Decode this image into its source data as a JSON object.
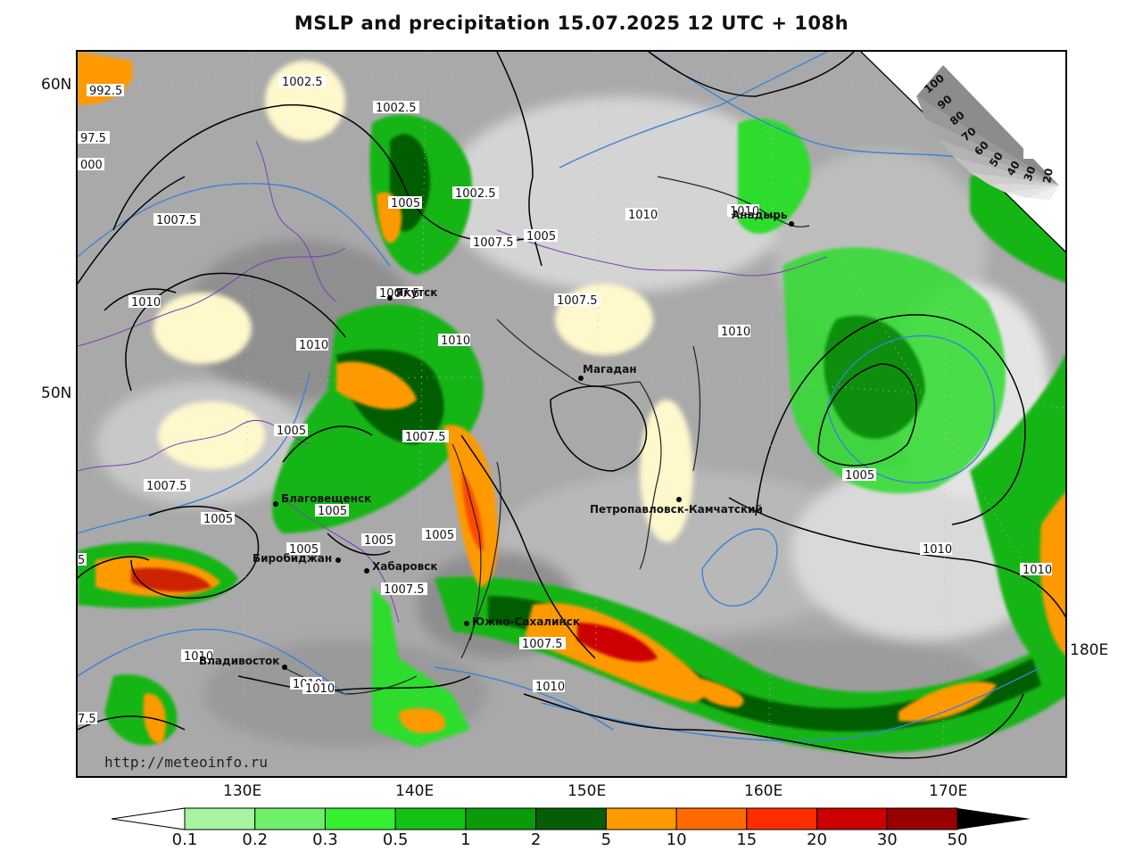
{
  "title": "MSLP and precipitation 15.07.2025 12 UTC + 108h",
  "source": "http://meteoinfo.ru",
  "lat_labels": [
    "60N",
    "50N"
  ],
  "lon_labels": [
    "130E",
    "140E",
    "150E",
    "160E",
    "170E",
    "180E"
  ],
  "cloud_scale": {
    "labels": [
      "100",
      "90",
      "80",
      "70",
      "60",
      "50",
      "40",
      "30",
      "20"
    ]
  },
  "precip_legend": {
    "unit_note": "",
    "labels": [
      "0.1",
      "0.2",
      "0.3",
      "0.5",
      "1",
      "2",
      "5",
      "10",
      "15",
      "20",
      "30",
      "50"
    ],
    "colors": [
      "#a6f3a0",
      "#6fef6a",
      "#34f02f",
      "#13c313",
      "#0a9a0a",
      "#065d06",
      "#ff9900",
      "#ff6a00",
      "#ff2c00",
      "#cc0000",
      "#990000"
    ]
  },
  "isobar_labels": [
    "992.5",
    "97.5",
    "000",
    "1002.5",
    "1002.5",
    "1002.5",
    "1005",
    "1007.5",
    "1005",
    "1010",
    "1010",
    "1007.5",
    "1007.5",
    "1010",
    "1007.5",
    "1010",
    "1005",
    "1007.5",
    "1007.5",
    "1005",
    "1010",
    "1005",
    "1005",
    "1005",
    "1005",
    "1007.5",
    "1010",
    "1010",
    "1010",
    "1007.5",
    "1010",
    "5",
    "7.5",
    "1010",
    "1010",
    "1005",
    "1010"
  ],
  "cities": [
    "Якутск",
    "Магадан",
    "Анадырь",
    "Петропавловск-Камчатский",
    "Благовещенск",
    "Биробиджан",
    "Хабаровск",
    "Южно-Сахалинск",
    "Владивосток"
  ],
  "colors": {
    "isobar": "#000000",
    "thickness": "#3b82d6",
    "border": "#7a3db8",
    "coast": "#222222"
  }
}
